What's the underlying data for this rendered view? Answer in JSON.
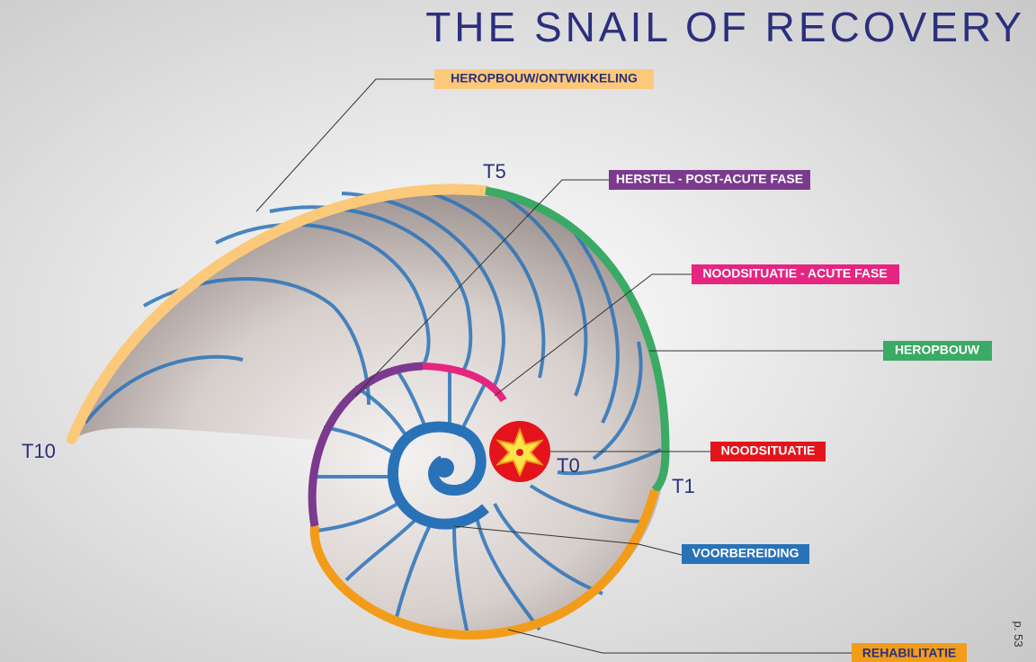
{
  "title": "THE SNAIL OF RECOVERY",
  "phases": [
    {
      "label": "HEROPBOUW/ONTWIKKELING"
    },
    {
      "label": "HERSTEL - POST-ACUTE FASE"
    },
    {
      "label": "NOODSITUATIE - ACUTE FASE"
    },
    {
      "label": "HEROPBOUW"
    },
    {
      "label": "NOODSITUATIE"
    },
    {
      "label": "VOORBEREIDING"
    },
    {
      "label": "REHABILITATIE"
    }
  ],
  "markers": [
    "T10",
    "T5",
    "T1",
    "T0"
  ],
  "page": "p. 53"
}
